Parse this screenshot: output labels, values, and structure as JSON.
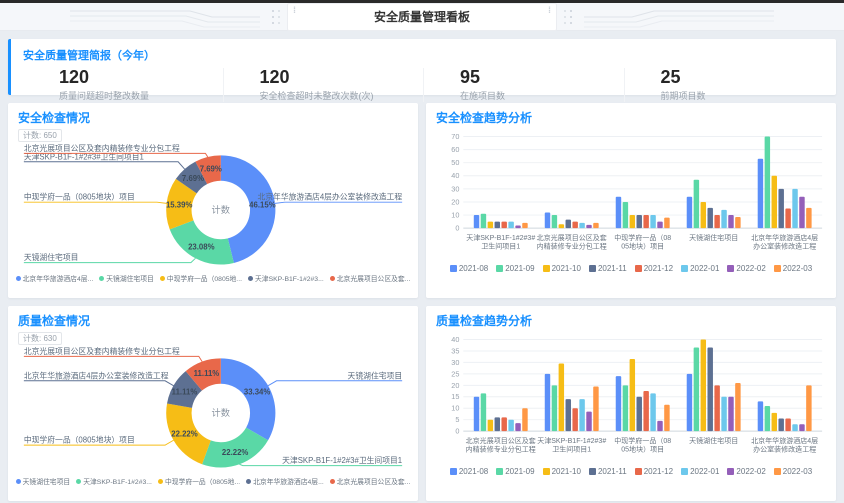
{
  "header": {
    "title": "安全质量管理看板"
  },
  "summary": {
    "title": "安全质量管理简报（今年）",
    "metrics": [
      {
        "value": "120",
        "label": "质量问题超时整改数量"
      },
      {
        "value": "120",
        "label": "安全检查超时未整改次数(次)"
      },
      {
        "value": "95",
        "label": "在施项目数"
      },
      {
        "value": "25",
        "label": "前期项目数"
      }
    ]
  },
  "badges": {
    "pie1": {
      "label": "计数:",
      "value": "650"
    },
    "pie2": {
      "label": "计数:",
      "value": "630"
    }
  },
  "colors": {
    "accent": "#1890FF",
    "series": [
      "#5B8FF9",
      "#5AD8A6",
      "#F6BD16",
      "#5D7092",
      "#E8684A",
      "#6DC8EC",
      "#945FB9",
      "#FF9845"
    ]
  },
  "chart_data": [
    {
      "type": "pie",
      "title": "安全检查情况",
      "center_label": "计数",
      "total": 650,
      "slices": [
        {
          "name": "北京年华旅游酒店4层办公室装修改造工程",
          "legend": "北京年华旅游酒店4层...",
          "pct": 46.15,
          "color": "#5B8FF9"
        },
        {
          "name": "天镜湖住宅项目",
          "legend": "天镜湖住宅项目",
          "pct": 23.08,
          "color": "#5AD8A6"
        },
        {
          "name": "中现学府一品（0805地块）项目",
          "legend": "中现学府一品（0805地...",
          "pct": 15.39,
          "color": "#F6BD16"
        },
        {
          "name": "天津SKP-B1F-1#2#3#卫生间项目1",
          "legend": "天津SKP-B1F-1#2#3...",
          "pct": 7.69,
          "color": "#5D7092"
        },
        {
          "name": "北京光展项目公区及套内精装修专业分包工程",
          "legend": "北京光展项目公区及套...",
          "pct": 7.69,
          "color": "#E8684A"
        }
      ]
    },
    {
      "type": "bar",
      "title": "安全检查趋势分析",
      "ylim": [
        0,
        70
      ],
      "ystep": 10,
      "grid": true,
      "legend_position": "bottom",
      "categories": [
        [
          "天津SKP-B1F-1#2#3#",
          "卫生间项目1"
        ],
        [
          "北京光展项目公区及套",
          "内精装修专业分包工程"
        ],
        [
          "中现学府一品（08",
          "05地块）项目"
        ],
        [
          "天镜湖住宅项目"
        ],
        [
          "北京年华旅游酒店4层",
          "办公室装修改造工程"
        ]
      ],
      "series": [
        {
          "name": "2021-08",
          "color": "#5B8FF9",
          "values": [
            10,
            12,
            24,
            24,
            53
          ]
        },
        {
          "name": "2021-09",
          "color": "#5AD8A6",
          "values": [
            11,
            10,
            20,
            37,
            70
          ]
        },
        {
          "name": "2021-10",
          "color": "#F6BD16",
          "values": [
            5,
            3,
            10,
            20,
            40
          ]
        },
        {
          "name": "2021-11",
          "color": "#5D7092",
          "values": [
            5,
            6.5,
            10,
            15.5,
            30
          ]
        },
        {
          "name": "2021-12",
          "color": "#E8684A",
          "values": [
            5,
            5,
            10,
            10,
            15
          ]
        },
        {
          "name": "2022-01",
          "color": "#6DC8EC",
          "values": [
            5,
            4,
            10,
            14,
            30
          ]
        },
        {
          "name": "2022-02",
          "color": "#945FB9",
          "values": [
            2,
            2.5,
            5,
            10,
            24
          ]
        },
        {
          "name": "2022-03",
          "color": "#FF9845",
          "values": [
            4,
            4,
            8,
            8.5,
            15.5
          ]
        }
      ]
    },
    {
      "type": "pie",
      "title": "质量检查情况",
      "center_label": "计数",
      "total": 630,
      "slices": [
        {
          "name": "天镜湖住宅项目",
          "legend": "天镜湖住宅项目",
          "pct": 33.34,
          "color": "#5B8FF9"
        },
        {
          "name": "天津SKP-B1F-1#2#3#卫生间项目1",
          "legend": "天津SKP-B1F-1#2#3...",
          "pct": 22.22,
          "color": "#5AD8A6"
        },
        {
          "name": "中现学府一品（0805地块）项目",
          "legend": "中现学府一品（0805地...",
          "pct": 22.22,
          "color": "#F6BD16"
        },
        {
          "name": "北京年华旅游酒店4层办公室装修改造工程",
          "legend": "北京年华旅游酒店4层...",
          "pct": 11.11,
          "color": "#5D7092"
        },
        {
          "name": "北京光展项目公区及套内精装修专业分包工程",
          "legend": "北京光展项目公区及套...",
          "pct": 11.11,
          "color": "#E8684A"
        }
      ]
    },
    {
      "type": "bar",
      "title": "质量检查趋势分析",
      "ylim": [
        0,
        40
      ],
      "ystep": 5,
      "grid": true,
      "legend_position": "bottom",
      "categories": [
        [
          "北京光展项目公区及套",
          "内精装修专业分包工程"
        ],
        [
          "天津SKP-B1F-1#2#3#",
          "卫生间项目1"
        ],
        [
          "中现学府一品（08",
          "05地块）项目"
        ],
        [
          "天镜湖住宅项目"
        ],
        [
          "北京年华旅游酒店4层",
          "办公室装修改造工程"
        ]
      ],
      "series": [
        {
          "name": "2021-08",
          "color": "#5B8FF9",
          "values": [
            15,
            25,
            24,
            25,
            13
          ]
        },
        {
          "name": "2021-09",
          "color": "#5AD8A6",
          "values": [
            16.5,
            20,
            20,
            36.5,
            11
          ]
        },
        {
          "name": "2021-10",
          "color": "#F6BD16",
          "values": [
            5,
            29.5,
            31.5,
            40,
            8
          ]
        },
        {
          "name": "2021-11",
          "color": "#5D7092",
          "values": [
            6,
            14,
            15,
            36.5,
            5.5
          ]
        },
        {
          "name": "2021-12",
          "color": "#E8684A",
          "values": [
            6,
            10,
            17.5,
            20,
            5.5
          ]
        },
        {
          "name": "2022-01",
          "color": "#6DC8EC",
          "values": [
            5,
            14,
            16.5,
            15,
            3
          ]
        },
        {
          "name": "2022-02",
          "color": "#945FB9",
          "values": [
            3.5,
            8.5,
            4.5,
            15,
            3
          ]
        },
        {
          "name": "2022-03",
          "color": "#FF9845",
          "values": [
            10,
            19.5,
            11.5,
            21,
            20
          ]
        }
      ]
    }
  ]
}
